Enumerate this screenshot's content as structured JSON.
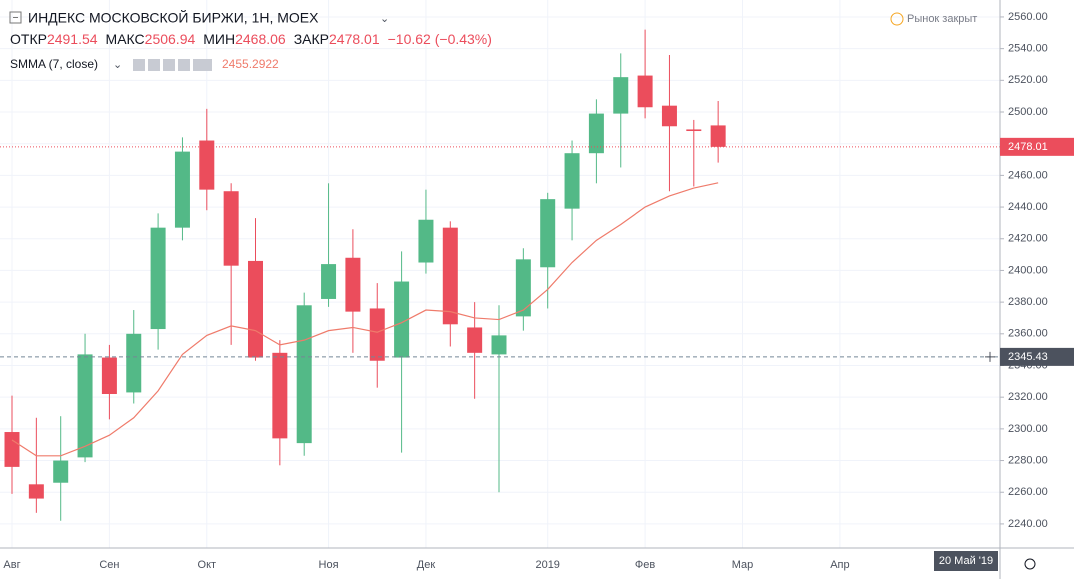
{
  "header": {
    "title": "ИНДЕКС МОСКОВСКОЙ БИРЖИ, 1Н, MOEX",
    "open_label": "ОТКР",
    "high_label": "МАКС",
    "low_label": "МИН",
    "close_label": "ЗАКР",
    "change": "−10.62 (−0.43%)",
    "indicator": "SMMA (7, close)",
    "market_status": "Рынок закрыт"
  },
  "chart_data": {
    "type": "candlestick",
    "categories": [
      "Авг",
      null,
      null,
      null,
      "Сен",
      null,
      null,
      null,
      "Окт",
      null,
      null,
      null,
      null,
      "Ноя",
      null,
      null,
      null,
      "Дек",
      null,
      null,
      null,
      null,
      "2019",
      null,
      null,
      null,
      "Фев",
      null,
      null,
      null,
      "Мар",
      null,
      null,
      null,
      "Апр",
      null,
      null,
      null,
      null,
      null
    ],
    "open": [
      2298,
      2265,
      2266,
      2282,
      2345,
      2323,
      2363,
      2427,
      2482,
      2450,
      2406,
      2348,
      2291,
      2382,
      2408,
      2376,
      2345,
      2405,
      2427,
      2364,
      2347,
      2371,
      2402,
      2439,
      2474,
      2499,
      2523,
      2504,
      2489,
      2491.54,
      null,
      null,
      null,
      null,
      null,
      null,
      null,
      null,
      null,
      null
    ],
    "high": [
      2321,
      2307,
      2308,
      2360,
      2353,
      2375,
      2436,
      2484,
      2502,
      2455,
      2433,
      2356,
      2386,
      2455,
      2426,
      2392,
      2412,
      2451,
      2431,
      2380,
      2378,
      2414,
      2449,
      2482,
      2508,
      2537,
      2552,
      2536,
      2495,
      2506.94,
      null,
      null,
      null,
      null,
      null,
      null,
      null,
      null,
      null,
      null
    ],
    "low": [
      2259,
      2247,
      2242,
      2279,
      2306,
      2316,
      2350,
      2419,
      2438,
      2353,
      2343,
      2277,
      2283,
      2377,
      2348,
      2326,
      2285,
      2398,
      2352,
      2319,
      2260,
      2362,
      2376,
      2419,
      2455,
      2465,
      2496,
      2450,
      2453,
      2468.06,
      null,
      null,
      null,
      null,
      null,
      null,
      null,
      null,
      null,
      null
    ],
    "close": [
      2276,
      2256,
      2280,
      2347,
      2322,
      2360,
      2427,
      2475,
      2451,
      2403,
      2345,
      2294,
      2378,
      2404,
      2374,
      2343,
      2393,
      2432,
      2366,
      2348,
      2359,
      2407,
      2445,
      2474,
      2499,
      2522,
      2503,
      2491,
      2488,
      2478.01,
      null,
      null,
      null,
      null,
      null,
      null,
      null,
      null,
      null,
      null
    ],
    "up_color": "#53b987",
    "down_color": "#eb4d5c",
    "smma": {
      "name": "SMMA",
      "color": "#ef7b6b",
      "values": [
        2293,
        2283,
        2283,
        2289,
        2296,
        2307,
        2324,
        2347,
        2359,
        2365,
        2362,
        2353,
        2356,
        2362,
        2364,
        2361,
        2367,
        2375,
        2374,
        2370,
        2369,
        2375,
        2388,
        2405,
        2419,
        2429,
        2440,
        2447,
        2452,
        2455.2922,
        null,
        null,
        null,
        null,
        null,
        null,
        null,
        null,
        null,
        null
      ]
    },
    "crosshair": 2345.43,
    "crosshair_date": "20 Май '19",
    "ylim": [
      2224.8,
      2570.7
    ],
    "yticks": [
      {
        "value": 2240,
        "label": "2240.00"
      },
      {
        "value": 2260,
        "label": "2260.00"
      },
      {
        "value": 2280,
        "label": "2280.00"
      },
      {
        "value": 2300,
        "label": "2300.00"
      },
      {
        "value": 2320,
        "label": "2320.00"
      },
      {
        "value": 2340,
        "label": "2340.00"
      },
      {
        "value": 2360,
        "label": "2360.00"
      },
      {
        "value": 2380,
        "label": "2380.00"
      },
      {
        "value": 2400,
        "label": "2400.00"
      },
      {
        "value": 2420,
        "label": "2420.00"
      },
      {
        "value": 2440,
        "label": "2440.00"
      },
      {
        "value": 2460,
        "label": "2460.00"
      },
      {
        "value": 2480,
        "label": "2480.00"
      },
      {
        "value": 2500,
        "label": "2500.00"
      },
      {
        "value": 2520,
        "label": "2520.00"
      },
      {
        "value": 2540,
        "label": "2540.00"
      },
      {
        "value": 2560,
        "label": "2560.00"
      }
    ],
    "grid": true
  }
}
